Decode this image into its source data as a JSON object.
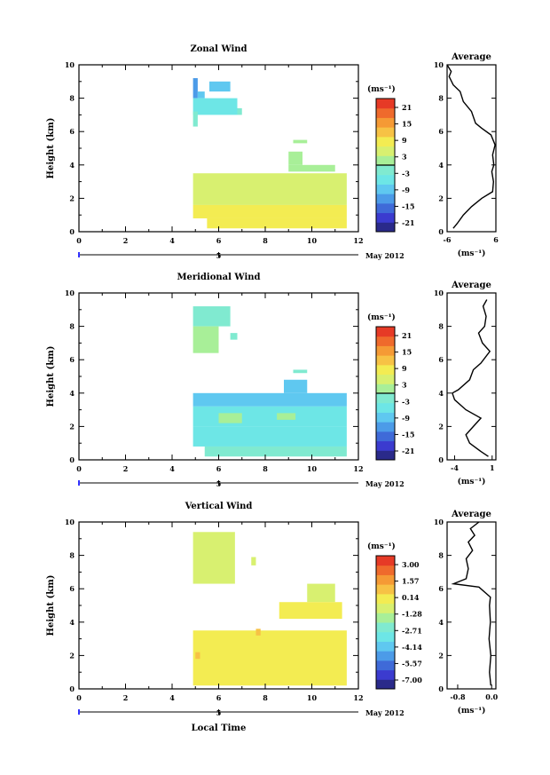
{
  "figure": {
    "xlabel": "Local Time",
    "date_label": "May 2012",
    "date_marker": "5",
    "colorbar_unit": "(ms⁻¹)",
    "avg_unit": "(ms⁻¹)"
  },
  "chart_data": [
    {
      "type": "heatmap",
      "title": "Zonal Wind",
      "ylabel": "Height (km)",
      "xlim": [
        0,
        12
      ],
      "ylim": [
        0,
        10
      ],
      "xticks": [
        0,
        2,
        4,
        6,
        8,
        10,
        12
      ],
      "yticks": [
        0,
        2,
        4,
        6,
        8,
        10
      ],
      "colorbar": {
        "min": -24,
        "max": 24,
        "zero_line": 0,
        "labels": [
          "21",
          "15",
          "9",
          "3",
          "-3",
          "-9",
          "-15",
          "-21"
        ]
      },
      "patches": [
        {
          "x": [
            4.9,
            5.1
          ],
          "y": [
            8.0,
            9.2
          ],
          "level": -12
        },
        {
          "x": [
            5.1,
            5.4
          ],
          "y": [
            8.0,
            8.4
          ],
          "level": -10
        },
        {
          "x": [
            5.6,
            6.5
          ],
          "y": [
            8.4,
            9.0
          ],
          "level": -8
        },
        {
          "x": [
            4.9,
            6.8
          ],
          "y": [
            7.0,
            8.0
          ],
          "level": -5
        },
        {
          "x": [
            4.9,
            5.1
          ],
          "y": [
            6.3,
            7.2
          ],
          "level": -3
        },
        {
          "x": [
            6.8,
            7.0
          ],
          "y": [
            7.0,
            7.4
          ],
          "level": -2
        },
        {
          "x": [
            9.2,
            9.8
          ],
          "y": [
            5.3,
            5.5
          ],
          "level": 3
        },
        {
          "x": [
            9.0,
            9.6
          ],
          "y": [
            4.0,
            4.8
          ],
          "level": 3
        },
        {
          "x": [
            9.0,
            11.0
          ],
          "y": [
            3.6,
            4.0
          ],
          "level": 3
        },
        {
          "x": [
            4.9,
            11.5
          ],
          "y": [
            2.5,
            3.5
          ],
          "level": 4
        },
        {
          "x": [
            4.9,
            11.5
          ],
          "y": [
            1.6,
            2.5
          ],
          "level": 5
        },
        {
          "x": [
            4.9,
            11.5
          ],
          "y": [
            0.8,
            1.6
          ],
          "level": 7
        },
        {
          "x": [
            5.5,
            11.5
          ],
          "y": [
            0.2,
            0.8
          ],
          "level": 7
        }
      ],
      "average": {
        "xlim": [
          -6,
          6
        ],
        "xticks": [
          -6,
          6
        ],
        "xtick_labels": [
          "-6",
          "6"
        ],
        "ylim": [
          0,
          10
        ],
        "yticks": [
          0,
          2,
          4,
          6,
          8,
          10
        ],
        "title": "Average",
        "profile": [
          [
            -4.5,
            0.2
          ],
          [
            -3.5,
            0.5
          ],
          [
            -2,
            1.0
          ],
          [
            0,
            1.5
          ],
          [
            2.5,
            2.0
          ],
          [
            5.2,
            2.4
          ],
          [
            5.4,
            3.0
          ],
          [
            5.0,
            3.6
          ],
          [
            5.5,
            4.0
          ],
          [
            5.2,
            4.6
          ],
          [
            5.8,
            5.2
          ],
          [
            4.8,
            5.8
          ],
          [
            2.5,
            6.2
          ],
          [
            1.0,
            6.5
          ],
          [
            0.0,
            7.2
          ],
          [
            -2.0,
            7.8
          ],
          [
            -2.8,
            8.4
          ],
          [
            -4.5,
            8.8
          ],
          [
            -5.5,
            9.3
          ],
          [
            -5.0,
            9.6
          ],
          [
            -6.0,
            10.0
          ]
        ]
      }
    },
    {
      "type": "heatmap",
      "title": "Meridional Wind",
      "ylabel": "Height (km)",
      "xlim": [
        0,
        12
      ],
      "ylim": [
        0,
        10
      ],
      "xticks": [
        0,
        2,
        4,
        6,
        8,
        10,
        12
      ],
      "yticks": [
        0,
        2,
        4,
        6,
        8,
        10
      ],
      "colorbar": {
        "min": -24,
        "max": 24,
        "zero_line": 0,
        "labels": [
          "21",
          "15",
          "9",
          "3",
          "-3",
          "-9",
          "-15",
          "-21"
        ]
      },
      "patches": [
        {
          "x": [
            4.9,
            6.5
          ],
          "y": [
            8.0,
            9.2
          ],
          "level": -2
        },
        {
          "x": [
            4.9,
            6.0
          ],
          "y": [
            6.4,
            8.0
          ],
          "level": 2
        },
        {
          "x": [
            6.5,
            6.8
          ],
          "y": [
            7.2,
            7.6
          ],
          "level": -3
        },
        {
          "x": [
            9.2,
            9.8
          ],
          "y": [
            5.2,
            5.4
          ],
          "level": -2
        },
        {
          "x": [
            8.8,
            9.8
          ],
          "y": [
            4.0,
            4.8
          ],
          "level": -8
        },
        {
          "x": [
            4.9,
            11.5
          ],
          "y": [
            3.2,
            4.0
          ],
          "level": -10
        },
        {
          "x": [
            4.9,
            11.5
          ],
          "y": [
            2.0,
            3.2
          ],
          "level": -5
        },
        {
          "x": [
            4.9,
            11.5
          ],
          "y": [
            0.8,
            2.0
          ],
          "level": -4
        },
        {
          "x": [
            5.4,
            11.5
          ],
          "y": [
            0.2,
            0.8
          ],
          "level": -1
        },
        {
          "x": [
            6.0,
            7.0
          ],
          "y": [
            2.2,
            2.8
          ],
          "level": 2
        },
        {
          "x": [
            8.5,
            9.3
          ],
          "y": [
            2.4,
            2.8
          ],
          "level": 3
        }
      ],
      "average": {
        "xlim": [
          -5,
          1.5
        ],
        "xticks": [
          -4,
          1
        ],
        "xtick_labels": [
          "-4",
          "1"
        ],
        "ylim": [
          0,
          10
        ],
        "yticks": [
          0,
          2,
          4,
          6,
          8,
          10
        ],
        "title": "Average",
        "profile": [
          [
            0.5,
            0.2
          ],
          [
            -0.5,
            0.5
          ],
          [
            -2,
            1.0
          ],
          [
            -2.5,
            1.5
          ],
          [
            -1.5,
            2.0
          ],
          [
            -0.5,
            2.5
          ],
          [
            -2.5,
            3.0
          ],
          [
            -4.0,
            3.6
          ],
          [
            -4.3,
            4.0
          ],
          [
            -3.5,
            4.2
          ],
          [
            -2.0,
            4.8
          ],
          [
            -1.5,
            5.4
          ],
          [
            -0.5,
            5.8
          ],
          [
            0.7,
            6.5
          ],
          [
            -0.3,
            7.0
          ],
          [
            -0.8,
            7.6
          ],
          [
            0.0,
            8.0
          ],
          [
            0.2,
            8.6
          ],
          [
            -0.2,
            9.2
          ],
          [
            0.3,
            9.6
          ]
        ]
      }
    },
    {
      "type": "heatmap",
      "title": "Vertical Wind",
      "ylabel": "Height (km)",
      "xlim": [
        0,
        12
      ],
      "ylim": [
        0,
        10
      ],
      "xticks": [
        0,
        2,
        4,
        6,
        8,
        10,
        12
      ],
      "yticks": [
        0,
        2,
        4,
        6,
        8,
        10
      ],
      "colorbar": {
        "min": -8.5,
        "max": 4.5,
        "zero_line": null,
        "labels": [
          "3.00",
          "1.57",
          "0.14",
          "-1.28",
          "-2.71",
          "-4.14",
          "-5.57",
          "-7.00"
        ]
      },
      "patches": [
        {
          "x": [
            4.9,
            6.7
          ],
          "y": [
            6.3,
            9.4
          ],
          "level": -0.8
        },
        {
          "x": [
            7.4,
            7.6
          ],
          "y": [
            7.4,
            7.9
          ],
          "level": -0.8
        },
        {
          "x": [
            9.8,
            11.0
          ],
          "y": [
            5.2,
            6.3
          ],
          "level": -0.2
        },
        {
          "x": [
            8.6,
            11.3
          ],
          "y": [
            4.2,
            5.2
          ],
          "level": 0.1
        },
        {
          "x": [
            4.9,
            11.5
          ],
          "y": [
            0.2,
            3.5
          ],
          "level": 0.4
        },
        {
          "x": [
            5.0,
            5.2
          ],
          "y": [
            1.8,
            2.2
          ],
          "level": 1.5
        },
        {
          "x": [
            7.6,
            7.8
          ],
          "y": [
            3.2,
            3.6
          ],
          "level": 1.2
        }
      ],
      "average": {
        "xlim": [
          -1.05,
          0.1
        ],
        "xticks": [
          -0.8,
          0.0
        ],
        "xtick_labels": [
          "-0.8",
          "0.0"
        ],
        "ylim": [
          0,
          10
        ],
        "yticks": [
          0,
          2,
          4,
          6,
          8,
          10
        ],
        "title": "Average",
        "profile": [
          [
            -0.02,
            0.2
          ],
          [
            -0.05,
            1.0
          ],
          [
            -0.02,
            2.0
          ],
          [
            -0.06,
            3.0
          ],
          [
            -0.03,
            4.0
          ],
          [
            -0.05,
            5.0
          ],
          [
            -0.03,
            5.5
          ],
          [
            -0.3,
            6.1
          ],
          [
            -0.9,
            6.3
          ],
          [
            -0.6,
            6.6
          ],
          [
            -0.55,
            7.2
          ],
          [
            -0.6,
            7.8
          ],
          [
            -0.45,
            8.3
          ],
          [
            -0.55,
            8.8
          ],
          [
            -0.4,
            9.2
          ],
          [
            -0.5,
            9.6
          ],
          [
            -0.3,
            10.0
          ]
        ]
      }
    }
  ]
}
